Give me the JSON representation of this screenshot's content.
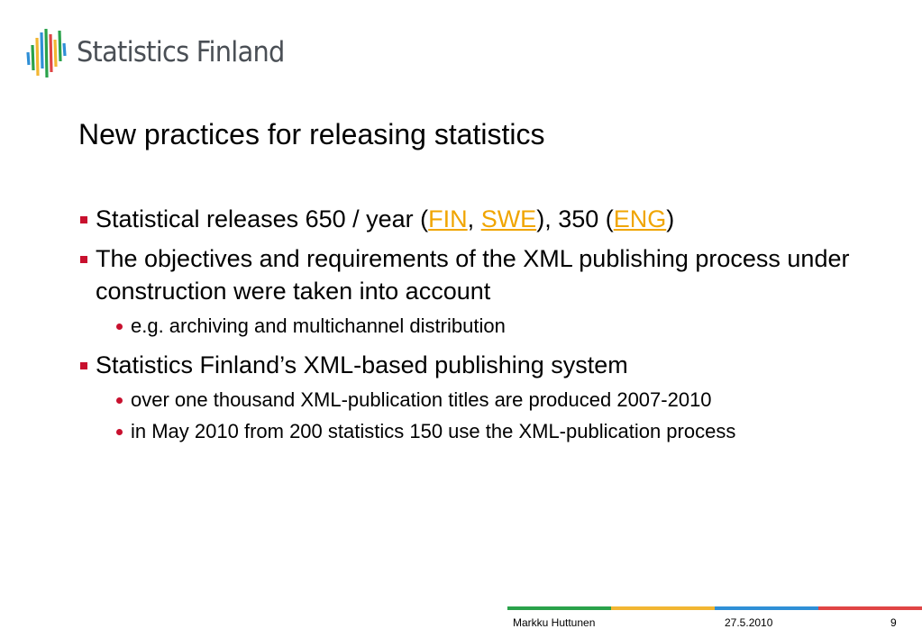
{
  "logo": {
    "name": "Statistics Finland"
  },
  "slide": {
    "title": "New practices for releasing statistics",
    "bullets": [
      {
        "pre": "Statistical releases 650 / year (",
        "link1": "FIN",
        "sep": ", ",
        "link2": "SWE",
        "mid": "), 350 (",
        "link3": "ENG",
        "post": ")"
      },
      {
        "text": "The objectives and requirements of the XML publishing process under construction were taken into account",
        "sub": [
          "e.g. archiving and multichannel distribution"
        ]
      },
      {
        "text": "Statistics Finland’s XML-based publishing system",
        "sub": [
          "over one thousand XML-publication titles are produced 2007-2010",
          "in May 2010 from 200 statistics 150 use the XML-publication process"
        ]
      }
    ]
  },
  "footer": {
    "author": "Markku Huttunen",
    "date": "27.5.2010",
    "page": "9",
    "bar_colors": [
      "#2aa24a",
      "#f2b632",
      "#2f8fd6",
      "#e04545"
    ]
  },
  "colors": {
    "bullet": "#c8102e",
    "link": "#f0a500",
    "logo_text": "#4a4f55"
  }
}
